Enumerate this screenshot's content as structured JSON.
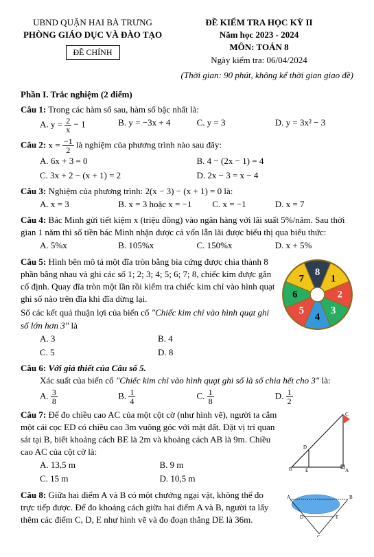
{
  "header": {
    "district": "UBND QUẬN HAI BÀ TRƯNG",
    "dept": "PHÒNG GIÁO DỤC VÀ ĐÀO TẠO",
    "stamp": "ĐỀ CHÍNH",
    "exam_title": "ĐỀ KIỂM TRA HỌC KỲ II",
    "year": "Năm học 2023 - 2024",
    "subject": "MÔN: TOÁN 8",
    "date_label": "Ngày kiểm tra: 06/04/2024",
    "time_note": "(Thời gian: 90 phút, không kể thời gian giao đề)"
  },
  "part1_title": "Phần I. Trắc nghiệm (2 điểm)",
  "q1": {
    "label": "Câu 1:",
    "text": "Trong các hàm số sau, hàm số bậc nhất là:",
    "B": "B. y = −3x + 4",
    "C": "C. y = 3",
    "D": "D. y = 3x² − 3"
  },
  "q2": {
    "label": "Câu 2:",
    "text_suffix": " là nghiệm của phương trình nào sau đây:",
    "A": "A. 6x + 3 = 0",
    "B": "B. 4 − (2x − 1) = 4",
    "C": "C. 3x + 2 − (x + 1) = 2",
    "D": "D. 2x − 3 = x − 4"
  },
  "q3": {
    "label": "Câu 3:",
    "text_prefix": "Nghiệm của phương trình: ",
    "expr": "2(x − 3) − (x + 1) = 0",
    "text_suffix": " là:",
    "A": "A. x = 3",
    "B": "B. x = 3 hoặc x = −1",
    "C": "C. x = −1",
    "D": "D. x = 7"
  },
  "q4": {
    "label": "Câu 4:",
    "text": "Bác Minh gửi tiết kiệm x (triệu đồng) vào ngân hàng với lãi suất 5%/năm. Sau thời gian 1 năm thì số tiền bác Minh nhận được cả vốn lẫn lãi được biểu thị qua biểu thức:",
    "A": "A. 5%x",
    "B": "B. 105%x",
    "C": "C. 150%x",
    "D": "D. x + 5%"
  },
  "q5": {
    "label": "Câu 5:",
    "text": "Hình bên mô tả một đĩa tròn bằng bìa cứng được chia thành 8 phần bằng nhau và ghi các số 1; 2; 3; 4; 5; 6; 7; 8, chiếc kim được gắn cố định. Quay đĩa tròn một lần rồi kiểm tra chiếc kim chỉ vào hình quạt ghi số nào trên đĩa khi đĩa dừng lại.",
    "prompt_prefix": "Số các kết quả thuận lợi của biến cố ",
    "prompt_quote": "\"Chiếc kim chỉ vào hình quạt ghi số lớn hơn 3\"",
    "prompt_suffix": " là",
    "A": "A. 3",
    "B": "B. 4",
    "C": "C. 5",
    "D": "D. 8",
    "wheel": {
      "labels": [
        "1",
        "2",
        "3",
        "4",
        "5",
        "6",
        "7",
        "8"
      ],
      "colors": [
        "#f0c419",
        "#e74c3c",
        "#27ae60",
        "#3498db",
        "#e74c3c",
        "#27ae60",
        "#f0c419",
        "#2c3e50"
      ],
      "label_colors": [
        "#000",
        "#fff",
        "#fff",
        "#000",
        "#fff",
        "#000",
        "#000",
        "#fff"
      ]
    }
  },
  "q6": {
    "label": "Câu 6:",
    "heading": "Với giả thiết của Câu số 5.",
    "text_prefix": "Xác suất của biến cố ",
    "text_quote": "\"Chiếc kim chỉ vào hình quạt ghi số là số chia hết cho 3\"",
    "text_suffix": " là:",
    "A_num": "3",
    "A_den": "8",
    "B_num": "1",
    "B_den": "4",
    "C_num": "1",
    "C_den": "8",
    "D_num": "1",
    "D_den": "2"
  },
  "q7": {
    "label": "Câu 7:",
    "text": "Để đo chiều cao AC của một cột cờ (như hình vẽ), người ta cắm một cái cọc ED có chiều cao 3m vuông góc với mặt đất. Đặt vị trí quan sát tại B, biết khoảng cách BE là 2m và khoảng cách AB là 9m. Chiều cao AC của cột cờ là:",
    "A": "A. 13,5 m",
    "B": "B. 9 m",
    "C": "C. 15 m",
    "D": "D. 10,5 m"
  },
  "q8": {
    "label": "Câu 8:",
    "text": "Giữa hai điểm A và B có một chướng ngại vật, không thể đo trực tiếp được. Để đo khoảng cách giữa hai điểm A và B, người ta lấy thêm các điểm C, D, E như hình vẽ và đo đoạn thẳng DE là 36m."
  }
}
